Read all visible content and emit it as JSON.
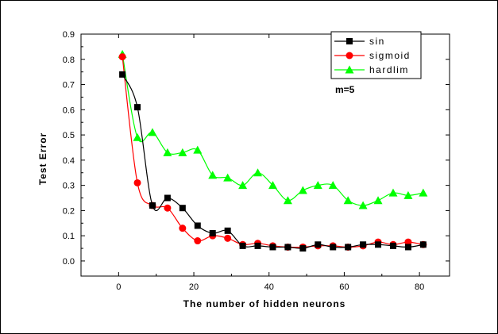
{
  "chart_data": {
    "type": "line",
    "xlabel": "The number of hidden neurons",
    "ylabel": "Test Error",
    "xlim": [
      -10,
      88
    ],
    "ylim": [
      -0.06,
      0.9
    ],
    "xticks": [
      0,
      20,
      40,
      60,
      80
    ],
    "yticks": [
      0.0,
      0.1,
      0.2,
      0.3,
      0.4,
      0.5,
      0.6,
      0.7,
      0.8,
      0.9
    ],
    "yticks_text": [
      "0.0",
      "0.1",
      "0.2",
      "0.3",
      "0.4",
      "0.5",
      "0.6",
      "0.7",
      "0.8",
      "0.9"
    ],
    "annotation": "m=5",
    "legend_position": "top-right",
    "x": [
      1,
      5,
      9,
      13,
      17,
      21,
      25,
      29,
      33,
      37,
      41,
      45,
      49,
      53,
      57,
      61,
      65,
      69,
      73,
      77,
      81
    ],
    "series": [
      {
        "name": "sin",
        "color": "#000000",
        "marker": "square",
        "values": [
          0.74,
          0.61,
          0.22,
          0.25,
          0.21,
          0.14,
          0.11,
          0.12,
          0.06,
          0.06,
          0.055,
          0.055,
          0.05,
          0.065,
          0.055,
          0.055,
          0.065,
          0.065,
          0.06,
          0.055,
          0.065
        ]
      },
      {
        "name": "sigmoid",
        "color": "#ff0000",
        "marker": "circle",
        "values": [
          0.81,
          0.31,
          0.22,
          0.21,
          0.13,
          0.08,
          0.1,
          0.09,
          0.065,
          0.07,
          0.06,
          0.055,
          0.055,
          0.06,
          0.06,
          0.055,
          0.06,
          0.075,
          0.065,
          0.075,
          0.065
        ]
      },
      {
        "name": "hardlim",
        "color": "#00ff00",
        "marker": "triangle",
        "values": [
          0.82,
          0.49,
          0.51,
          0.43,
          0.43,
          0.44,
          0.34,
          0.33,
          0.3,
          0.35,
          0.3,
          0.24,
          0.28,
          0.3,
          0.3,
          0.24,
          0.22,
          0.24,
          0.27,
          0.26,
          0.27
        ]
      }
    ]
  }
}
